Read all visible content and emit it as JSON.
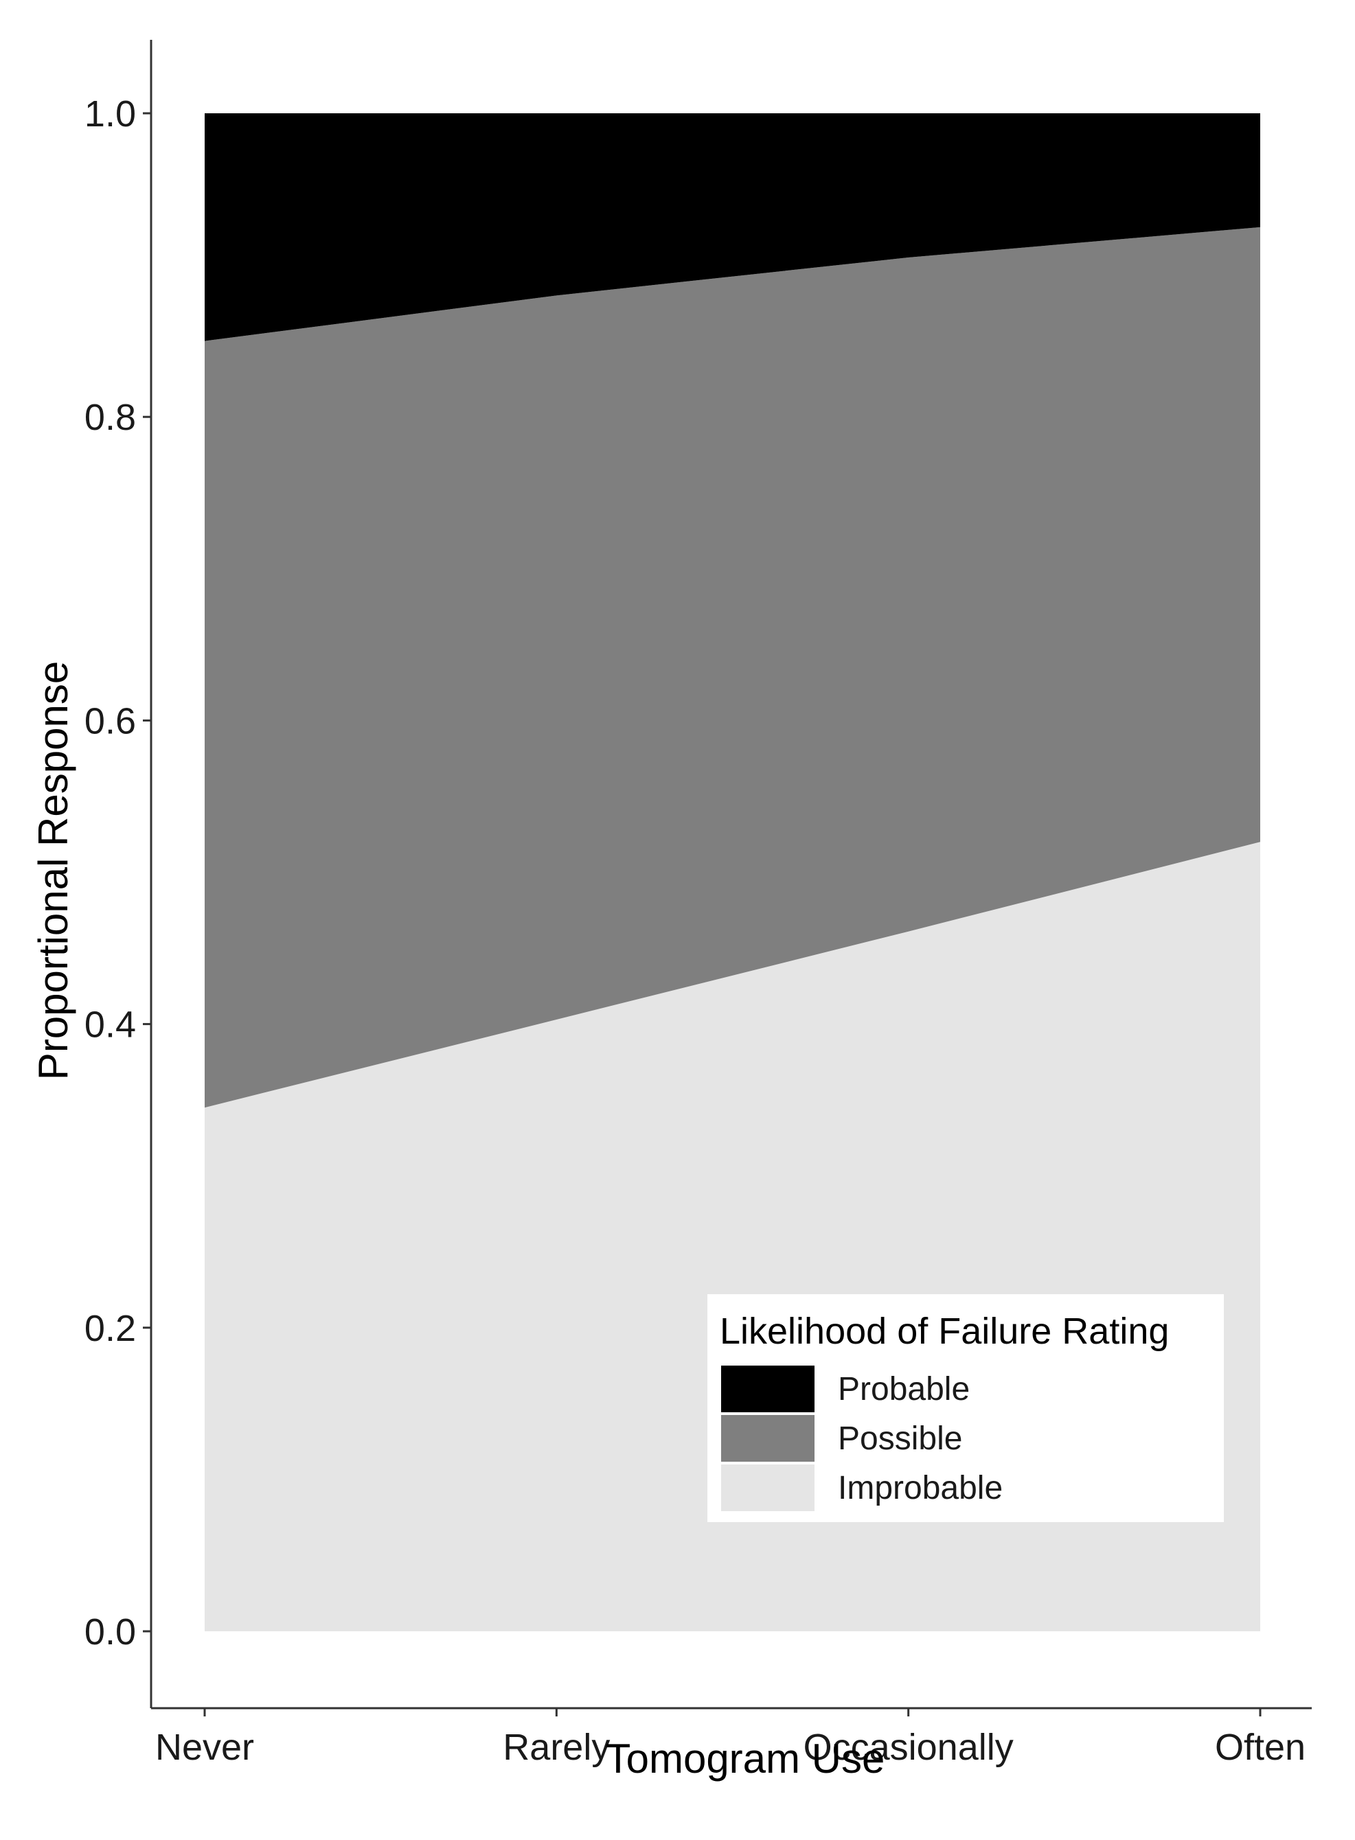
{
  "chart_data": {
    "type": "area",
    "stacked": true,
    "normalized": true,
    "categories": [
      "Never",
      "Rarely",
      "Occasionally",
      "Often"
    ],
    "series": [
      {
        "name": "Improbable",
        "color": "#e5e5e5",
        "values": [
          0.345,
          0.403,
          0.461,
          0.52
        ]
      },
      {
        "name": "Possible",
        "color": "#7f7f7f",
        "values": [
          0.505,
          0.477,
          0.444,
          0.405
        ]
      },
      {
        "name": "Probable",
        "color": "#000000",
        "values": [
          0.15,
          0.12,
          0.095,
          0.075
        ]
      }
    ],
    "xlabel": "Tomogram Use",
    "ylabel": "Proportional Response",
    "ylim": [
      -0.05,
      1.05
    ],
    "yticks": [
      "0.0",
      "0.2",
      "0.4",
      "0.6",
      "0.8",
      "1.0"
    ],
    "ytick_values": [
      0,
      0.2,
      0.4,
      0.6,
      0.8,
      1.0
    ],
    "grid": false,
    "legend": {
      "title": "Likelihood of Failure Rating",
      "placement": "bottom-right",
      "order": [
        "Probable",
        "Possible",
        "Improbable"
      ]
    }
  }
}
